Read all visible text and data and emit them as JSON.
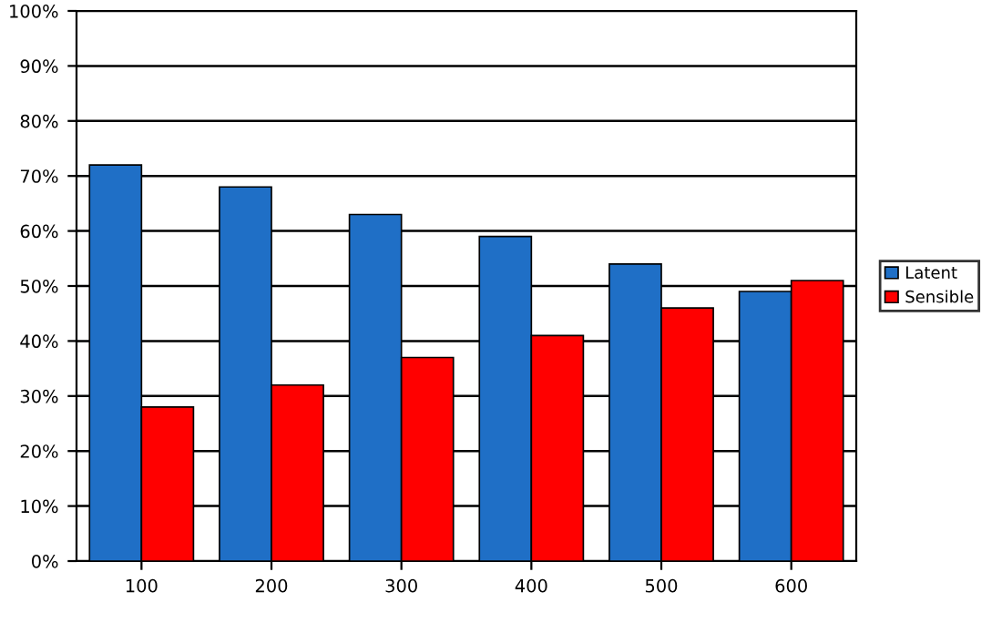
{
  "chart_data": {
    "type": "bar",
    "categories": [
      "100",
      "200",
      "300",
      "400",
      "500",
      "600"
    ],
    "series": [
      {
        "name": "Latent",
        "color": "#1f6fc6",
        "values": [
          72,
          68,
          63,
          59,
          54,
          49
        ]
      },
      {
        "name": "Sensible",
        "color": "#ff0000",
        "values": [
          28,
          32,
          37,
          41,
          46,
          51
        ]
      }
    ],
    "ylim": [
      0,
      100
    ],
    "yticks": [
      {
        "value": 0,
        "label": "0%"
      },
      {
        "value": 10,
        "label": "10%"
      },
      {
        "value": 20,
        "label": "20%"
      },
      {
        "value": 30,
        "label": "30%"
      },
      {
        "value": 40,
        "label": "40%"
      },
      {
        "value": 50,
        "label": "50%"
      },
      {
        "value": 60,
        "label": "60%"
      },
      {
        "value": 70,
        "label": "70%"
      },
      {
        "value": 80,
        "label": "80%"
      },
      {
        "value": 90,
        "label": "90%"
      },
      {
        "value": 100,
        "label": "100%"
      }
    ],
    "grid": "y",
    "legend": "right"
  }
}
